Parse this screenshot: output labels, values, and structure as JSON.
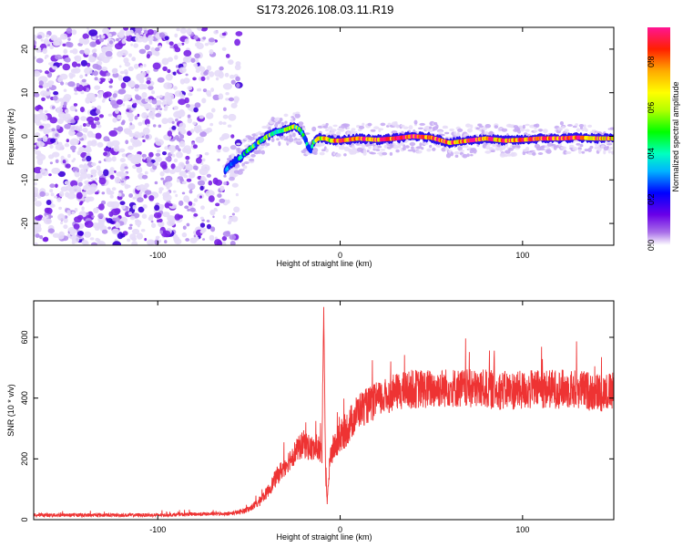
{
  "chart_data": [
    {
      "type": "heatmap",
      "title": "S173.2026.108.03.11.R19",
      "xlabel": "Height of straight line (km)",
      "ylabel": "Frequency (Hz)",
      "xlim": [
        -168,
        150
      ],
      "ylim": [
        -25,
        25
      ],
      "xticks": [
        -100,
        0,
        100
      ],
      "yticks": [
        -20,
        -10,
        0,
        10,
        20
      ],
      "colorbar": {
        "label": "Normalized spectral amplitude",
        "range": [
          0,
          0.95
        ],
        "ticks": [
          0.0,
          0.2,
          0.4,
          0.6,
          0.8
        ]
      },
      "noise_region_x": [
        -168,
        -55
      ],
      "ridge": {
        "x": [
          -63,
          -60,
          -55,
          -50,
          -45,
          -40,
          -35,
          -30,
          -25,
          -22,
          -20,
          -18,
          -16,
          -15,
          -12,
          -8,
          -5,
          0,
          10,
          20,
          30,
          40,
          50,
          60,
          70,
          80,
          90,
          100,
          110,
          120,
          130,
          140,
          148
        ],
        "y": [
          -8,
          -6.5,
          -5,
          -3,
          -1.5,
          0,
          1,
          1.5,
          2.3,
          1.5,
          0,
          -2,
          -3.5,
          -1.5,
          -0.5,
          -0.5,
          -1,
          -1,
          -0.5,
          -0.8,
          -0.5,
          0,
          -0.3,
          -1.5,
          -1,
          -0.5,
          -1,
          -0.8,
          -0.5,
          -0.5,
          -0.3,
          -0.5,
          -0.5
        ],
        "amplitude": [
          0.3,
          0.3,
          0.35,
          0.4,
          0.45,
          0.45,
          0.5,
          0.55,
          0.6,
          0.55,
          0.4,
          0.35,
          0.3,
          0.4,
          0.6,
          0.75,
          0.7,
          0.9,
          0.88,
          0.85,
          0.88,
          0.82,
          0.9,
          0.78,
          0.85,
          0.82,
          0.8,
          0.85,
          0.85,
          0.88,
          0.82,
          0.8,
          0.75
        ]
      }
    },
    {
      "type": "line",
      "xlabel": "Height of straight line (km)",
      "ylabel": "SNR (10 * v/v)",
      "xlim": [
        -168,
        150
      ],
      "ylim": [
        0,
        720
      ],
      "xticks": [
        -100,
        0,
        100
      ],
      "yticks": [
        0,
        200,
        400,
        600
      ],
      "series": [
        {
          "name": "SNR",
          "color": "#ee3333",
          "x": [
            -168,
            -140,
            -120,
            -100,
            -80,
            -60,
            -55,
            -50,
            -45,
            -40,
            -35,
            -30,
            -25,
            -20,
            -15,
            -12,
            -10,
            -9,
            -8,
            -7,
            -6,
            -5,
            0,
            5,
            10,
            20,
            30,
            40,
            50,
            60,
            70,
            80,
            90,
            100,
            110,
            120,
            130,
            140,
            150
          ],
          "y": [
            15,
            15,
            15,
            15,
            18,
            20,
            25,
            35,
            55,
            90,
            140,
            180,
            220,
            250,
            230,
            240,
            200,
            700,
            140,
            60,
            160,
            220,
            270,
            310,
            360,
            390,
            420,
            430,
            430,
            435,
            430,
            430,
            425,
            425,
            430,
            430,
            430,
            420,
            420
          ],
          "noise_amplitude": [
            6,
            6,
            6,
            6,
            6,
            6,
            8,
            10,
            15,
            20,
            30,
            35,
            40,
            45,
            45,
            45,
            40,
            0,
            30,
            20,
            35,
            45,
            55,
            60,
            60,
            60,
            60,
            65,
            65,
            65,
            65,
            65,
            65,
            65,
            65,
            65,
            65,
            65,
            65
          ]
        }
      ]
    }
  ]
}
